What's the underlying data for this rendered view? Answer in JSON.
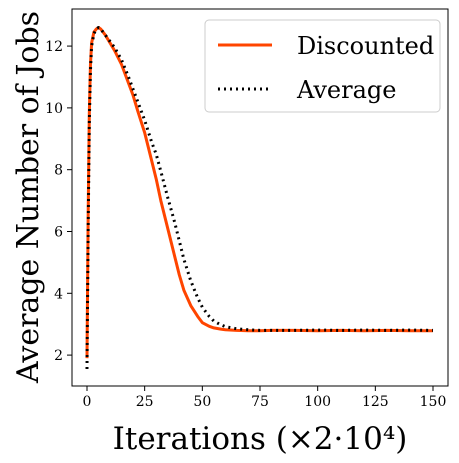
{
  "chart_data": {
    "type": "line",
    "xlabel": "Iterations (×2·10⁴)",
    "ylabel": "Average Number of Jobs",
    "xlim": [
      -6.5,
      156.5
    ],
    "ylim": [
      1.0,
      13.2
    ],
    "xticks": [
      0,
      25,
      50,
      75,
      100,
      125,
      150
    ],
    "yticks": [
      2,
      4,
      6,
      8,
      10,
      12
    ],
    "grid": false,
    "legend_position": "top-right",
    "series": [
      {
        "name": "Discounted",
        "color": "#ff4500",
        "style": "solid",
        "points": [
          [
            0,
            1.9
          ],
          [
            0.5,
            6.5
          ],
          [
            1,
            9.8
          ],
          [
            1.5,
            11.4
          ],
          [
            2,
            12.1
          ],
          [
            3,
            12.45
          ],
          [
            4,
            12.55
          ],
          [
            5,
            12.6
          ],
          [
            6,
            12.55
          ],
          [
            8,
            12.35
          ],
          [
            10,
            12.1
          ],
          [
            12,
            11.85
          ],
          [
            15,
            11.4
          ],
          [
            18,
            10.8
          ],
          [
            20,
            10.4
          ],
          [
            22,
            9.9
          ],
          [
            25,
            9.2
          ],
          [
            28,
            8.3
          ],
          [
            30,
            7.7
          ],
          [
            32,
            7.0
          ],
          [
            35,
            6.1
          ],
          [
            38,
            5.2
          ],
          [
            40,
            4.6
          ],
          [
            42,
            4.1
          ],
          [
            45,
            3.6
          ],
          [
            48,
            3.25
          ],
          [
            50,
            3.05
          ],
          [
            53,
            2.93
          ],
          [
            55,
            2.88
          ],
          [
            58,
            2.84
          ],
          [
            60,
            2.82
          ],
          [
            65,
            2.8
          ],
          [
            70,
            2.79
          ],
          [
            75,
            2.79
          ],
          [
            80,
            2.8
          ],
          [
            90,
            2.8
          ],
          [
            100,
            2.79
          ],
          [
            110,
            2.8
          ],
          [
            120,
            2.79
          ],
          [
            130,
            2.8
          ],
          [
            140,
            2.79
          ],
          [
            150,
            2.79
          ]
        ]
      },
      {
        "name": "Average",
        "color": "#000000",
        "style": "dotted",
        "points": [
          [
            0,
            1.55
          ],
          [
            0.5,
            6.0
          ],
          [
            1,
            9.5
          ],
          [
            1.5,
            11.2
          ],
          [
            2,
            12.0
          ],
          [
            3,
            12.4
          ],
          [
            4,
            12.55
          ],
          [
            5,
            12.6
          ],
          [
            6,
            12.55
          ],
          [
            8,
            12.35
          ],
          [
            10,
            12.15
          ],
          [
            12,
            11.95
          ],
          [
            15,
            11.55
          ],
          [
            18,
            11.0
          ],
          [
            20,
            10.6
          ],
          [
            22,
            10.2
          ],
          [
            25,
            9.6
          ],
          [
            28,
            8.9
          ],
          [
            30,
            8.5
          ],
          [
            32,
            7.95
          ],
          [
            35,
            7.1
          ],
          [
            38,
            6.3
          ],
          [
            40,
            5.7
          ],
          [
            42,
            5.1
          ],
          [
            45,
            4.4
          ],
          [
            48,
            3.85
          ],
          [
            50,
            3.55
          ],
          [
            53,
            3.25
          ],
          [
            55,
            3.1
          ],
          [
            58,
            2.98
          ],
          [
            60,
            2.92
          ],
          [
            65,
            2.85
          ],
          [
            70,
            2.82
          ],
          [
            75,
            2.8
          ],
          [
            80,
            2.8
          ],
          [
            90,
            2.8
          ],
          [
            100,
            2.81
          ],
          [
            110,
            2.8
          ],
          [
            120,
            2.81
          ],
          [
            130,
            2.8
          ],
          [
            140,
            2.81
          ],
          [
            150,
            2.8
          ]
        ]
      }
    ]
  }
}
